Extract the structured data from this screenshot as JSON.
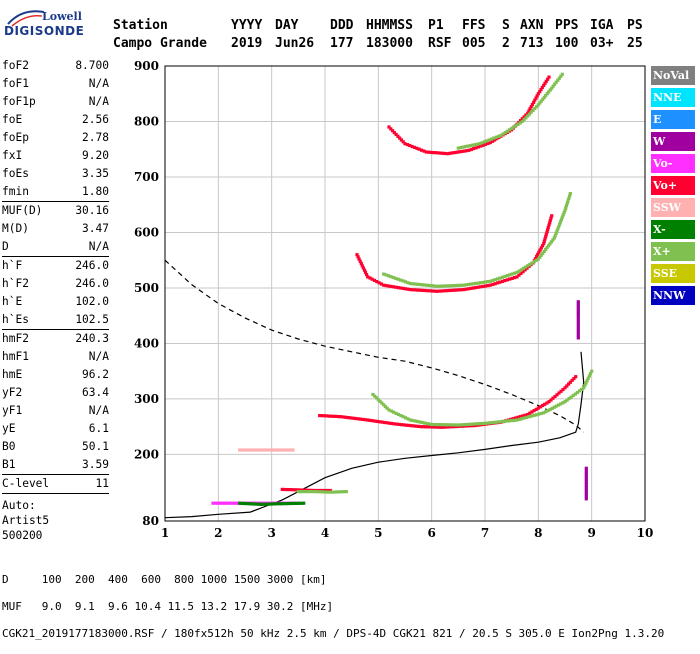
{
  "logo": {
    "brand": "Lowell",
    "product": "DIGISONDE"
  },
  "header": {
    "row1": [
      "Station",
      "YYYY",
      "DAY",
      "DDD",
      "HHMMSS",
      "P1",
      "FFS",
      "S",
      "AXN",
      "PPS",
      "IGA",
      "PS"
    ],
    "row2": [
      "Campo Grande",
      "2019",
      "Jun26",
      "177",
      "183000",
      "RSF",
      "005",
      "2",
      "713",
      "100",
      "03+",
      "25"
    ]
  },
  "params": {
    "group1": [
      {
        "label": "foF2",
        "value": "8.700"
      },
      {
        "label": "foF1",
        "value": "N/A"
      },
      {
        "label": "foF1p",
        "value": "N/A"
      },
      {
        "label": "foE",
        "value": "2.56"
      },
      {
        "label": "foEp",
        "value": "2.78"
      },
      {
        "label": "fxI",
        "value": "9.20"
      },
      {
        "label": "foEs",
        "value": "3.35"
      },
      {
        "label": "fmin",
        "value": "1.80"
      }
    ],
    "group2": [
      {
        "label": "MUF(D)",
        "value": "30.16"
      },
      {
        "label": "M(D)",
        "value": "3.47"
      },
      {
        "label": "D",
        "value": "N/A"
      }
    ],
    "group3": [
      {
        "label": "h`F",
        "value": "246.0"
      },
      {
        "label": "h`F2",
        "value": "246.0"
      },
      {
        "label": "h`E",
        "value": "102.0"
      },
      {
        "label": "h`Es",
        "value": "102.5"
      }
    ],
    "group4": [
      {
        "label": "hmF2",
        "value": "240.3"
      },
      {
        "label": "hmF1",
        "value": "N/A"
      },
      {
        "label": "hmE",
        "value": "96.2"
      },
      {
        "label": "yF2",
        "value": "63.4"
      },
      {
        "label": "yF1",
        "value": "N/A"
      },
      {
        "label": "yE",
        "value": "6.1"
      },
      {
        "label": "B0",
        "value": "50.1"
      },
      {
        "label": "B1",
        "value": "3.59"
      }
    ],
    "group5": [
      {
        "label": "C-level",
        "value": "11"
      }
    ],
    "auto": [
      "Auto:",
      "Artist5",
      "500200"
    ]
  },
  "legend": [
    {
      "label": "NoVal",
      "color": "#808080"
    },
    {
      "label": "NNE",
      "color": "#00e5ff"
    },
    {
      "label": "E",
      "color": "#1e90ff"
    },
    {
      "label": "W",
      "color": "#a000a0"
    },
    {
      "label": "Vo-",
      "color": "#ff30ff"
    },
    {
      "label": "Vo+",
      "color": "#ff0030"
    },
    {
      "label": "SSW",
      "color": "#ffb0b0"
    },
    {
      "label": "X-",
      "color": "#008000"
    },
    {
      "label": "X+",
      "color": "#80c050"
    },
    {
      "label": "SSE",
      "color": "#c8c800"
    },
    {
      "label": "NNW",
      "color": "#0000c0"
    }
  ],
  "footer": {
    "d_row": "D     100  200  400  600  800 1000 1500 3000 [km]",
    "muf_row": "MUF   9.0  9.1  9.6 10.4 11.5 13.2 17.9 30.2 [MHz]",
    "info_row": "CGK21_2019177183000.RSF / 180fx512h 50 kHz 2.5 km / DPS-4D CGK21 821 / 20.5 S 305.0 E Ion2Png 1.3.20"
  },
  "chart_data": {
    "type": "scatter",
    "xlim": [
      1,
      10
    ],
    "ylim": [
      80,
      900
    ],
    "x_ticks": [
      1,
      2,
      3,
      4,
      5,
      6,
      7,
      8,
      9,
      10
    ],
    "y_ticks": [
      80,
      200,
      300,
      400,
      500,
      600,
      700,
      800,
      900
    ],
    "grid": true,
    "legend_placement": "right",
    "profile_solid": [
      [
        1.0,
        86
      ],
      [
        1.5,
        88
      ],
      [
        2.0,
        92
      ],
      [
        2.6,
        96
      ],
      [
        2.9,
        107
      ],
      [
        3.2,
        118
      ],
      [
        3.6,
        138
      ],
      [
        4.0,
        158
      ],
      [
        4.5,
        175
      ],
      [
        5.0,
        186
      ],
      [
        5.5,
        193
      ],
      [
        6.0,
        198
      ],
      [
        6.5,
        203
      ],
      [
        7.0,
        209
      ],
      [
        7.5,
        216
      ],
      [
        8.0,
        222
      ],
      [
        8.4,
        230
      ],
      [
        8.7,
        240
      ],
      [
        8.75,
        255
      ],
      [
        8.8,
        290
      ],
      [
        8.85,
        330
      ],
      [
        8.8,
        385
      ]
    ],
    "muf_curve_dashed": [
      [
        1.0,
        550
      ],
      [
        1.5,
        506
      ],
      [
        2.0,
        472
      ],
      [
        2.5,
        446
      ],
      [
        3.0,
        424
      ],
      [
        3.5,
        408
      ],
      [
        4.0,
        395
      ],
      [
        4.5,
        385
      ],
      [
        5.0,
        375
      ],
      [
        5.5,
        368
      ],
      [
        6.0,
        356
      ],
      [
        6.5,
        342
      ],
      [
        7.0,
        326
      ],
      [
        7.5,
        308
      ],
      [
        8.0,
        288
      ],
      [
        8.4,
        270
      ],
      [
        8.7,
        253
      ],
      [
        8.85,
        240
      ]
    ],
    "traces": [
      {
        "series": "Vo+",
        "points": [
          [
            3.9,
            270
          ],
          [
            4.3,
            268
          ],
          [
            4.8,
            262
          ],
          [
            5.3,
            255
          ],
          [
            5.8,
            250
          ],
          [
            6.2,
            249
          ],
          [
            6.8,
            252
          ],
          [
            7.3,
            258
          ],
          [
            7.8,
            272
          ],
          [
            8.2,
            295
          ],
          [
            8.5,
            320
          ],
          [
            8.7,
            340
          ]
        ]
      },
      {
        "series": "X+",
        "points": [
          [
            4.9,
            308
          ],
          [
            5.2,
            280
          ],
          [
            5.6,
            262
          ],
          [
            6.0,
            254
          ],
          [
            6.5,
            253
          ],
          [
            7.0,
            256
          ],
          [
            7.6,
            262
          ],
          [
            8.1,
            275
          ],
          [
            8.5,
            295
          ],
          [
            8.85,
            320
          ],
          [
            9.0,
            350
          ]
        ]
      },
      {
        "series": "Vo+",
        "points": [
          [
            4.6,
            560
          ],
          [
            4.8,
            520
          ],
          [
            5.1,
            505
          ],
          [
            5.6,
            497
          ],
          [
            6.1,
            494
          ],
          [
            6.6,
            497
          ],
          [
            7.1,
            505
          ],
          [
            7.6,
            520
          ],
          [
            7.9,
            545
          ],
          [
            8.1,
            580
          ],
          [
            8.25,
            630
          ]
        ]
      },
      {
        "series": "X+",
        "points": [
          [
            5.1,
            525
          ],
          [
            5.6,
            508
          ],
          [
            6.1,
            503
          ],
          [
            6.6,
            505
          ],
          [
            7.1,
            512
          ],
          [
            7.6,
            528
          ],
          [
            8.0,
            552
          ],
          [
            8.3,
            590
          ],
          [
            8.5,
            640
          ],
          [
            8.6,
            670
          ]
        ]
      },
      {
        "series": "Vo+",
        "points": [
          [
            5.2,
            790
          ],
          [
            5.5,
            760
          ],
          [
            5.9,
            745
          ],
          [
            6.3,
            742
          ],
          [
            6.7,
            748
          ],
          [
            7.1,
            762
          ],
          [
            7.5,
            785
          ],
          [
            7.8,
            815
          ],
          [
            8.0,
            850
          ],
          [
            8.2,
            880
          ]
        ]
      },
      {
        "series": "X+",
        "points": [
          [
            6.5,
            752
          ],
          [
            6.9,
            760
          ],
          [
            7.3,
            775
          ],
          [
            7.7,
            800
          ],
          [
            8.0,
            830
          ],
          [
            8.25,
            860
          ],
          [
            8.45,
            885
          ]
        ]
      },
      {
        "series": "SSW",
        "points": [
          [
            2.4,
            208
          ],
          [
            2.7,
            208
          ],
          [
            3.0,
            208
          ],
          [
            3.4,
            208
          ]
        ]
      },
      {
        "series": "Vo-",
        "points": [
          [
            1.9,
            112
          ],
          [
            2.3,
            112
          ],
          [
            2.7,
            112
          ],
          [
            3.1,
            112
          ],
          [
            3.5,
            112
          ]
        ]
      },
      {
        "series": "X-",
        "points": [
          [
            2.4,
            112
          ],
          [
            2.8,
            110
          ],
          [
            3.1,
            111
          ],
          [
            3.6,
            112
          ]
        ]
      },
      {
        "series": "Vo+",
        "points": [
          [
            3.2,
            137
          ],
          [
            3.5,
            136
          ],
          [
            3.8,
            135
          ],
          [
            4.1,
            135
          ]
        ]
      },
      {
        "series": "X+",
        "points": [
          [
            3.5,
            133
          ],
          [
            3.8,
            133
          ],
          [
            4.1,
            132
          ],
          [
            4.4,
            133
          ]
        ]
      },
      {
        "series": "W",
        "points": [
          [
            8.9,
            120
          ],
          [
            8.9,
            135
          ],
          [
            8.9,
            150
          ],
          [
            8.9,
            165
          ],
          [
            8.9,
            175
          ]
        ]
      },
      {
        "series": "W",
        "points": [
          [
            8.75,
            410
          ],
          [
            8.75,
            430
          ],
          [
            8.75,
            450
          ],
          [
            8.75,
            475
          ]
        ]
      }
    ]
  }
}
